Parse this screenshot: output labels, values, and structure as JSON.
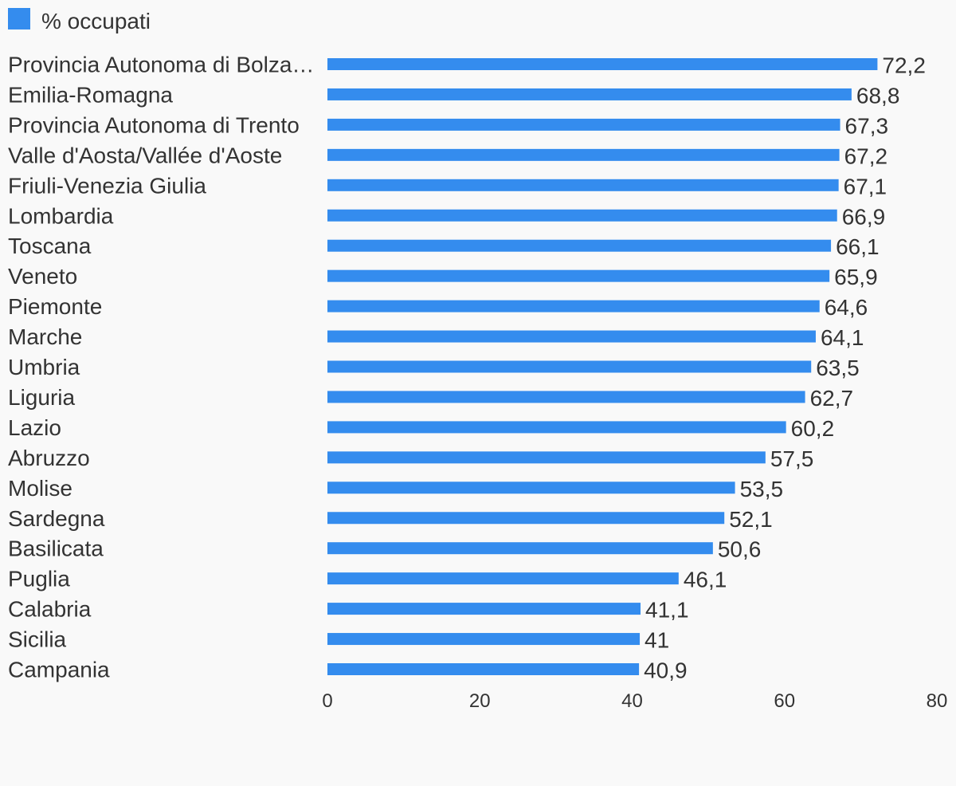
{
  "legend": {
    "label": "% occupati"
  },
  "colors": {
    "bar": "#348cee",
    "background": "#f9f9f9",
    "text": "#333333"
  },
  "chart_data": {
    "type": "bar",
    "orientation": "horizontal",
    "title": "",
    "xlabel": "",
    "ylabel": "",
    "xlim": [
      0,
      80
    ],
    "ticks": [
      0,
      20,
      40,
      60,
      80
    ],
    "grid": false,
    "legend_position": "top-left",
    "categories": [
      "Provincia Autonoma di Bolza…",
      "Emilia-Romagna",
      "Provincia Autonoma di Trento",
      "Valle d'Aosta/Vallée d'Aoste",
      "Friuli-Venezia Giulia",
      "Lombardia",
      "Toscana",
      "Veneto",
      "Piemonte",
      "Marche",
      "Umbria",
      "Liguria",
      "Lazio",
      "Abruzzo",
      "Molise",
      "Sardegna",
      "Basilicata",
      "Puglia",
      "Calabria",
      "Sicilia",
      "Campania"
    ],
    "series": [
      {
        "name": "% occupati",
        "values": [
          72.2,
          68.8,
          67.3,
          67.2,
          67.1,
          66.9,
          66.1,
          65.9,
          64.6,
          64.1,
          63.5,
          62.7,
          60.2,
          57.5,
          53.5,
          52.1,
          50.6,
          46.1,
          41.1,
          41,
          40.9
        ],
        "value_labels": [
          "72,2",
          "68,8",
          "67,3",
          "67,2",
          "67,1",
          "66,9",
          "66,1",
          "65,9",
          "64,6",
          "64,1",
          "63,5",
          "62,7",
          "60,2",
          "57,5",
          "53,5",
          "52,1",
          "50,6",
          "46,1",
          "41,1",
          "41",
          "40,9"
        ]
      }
    ]
  }
}
